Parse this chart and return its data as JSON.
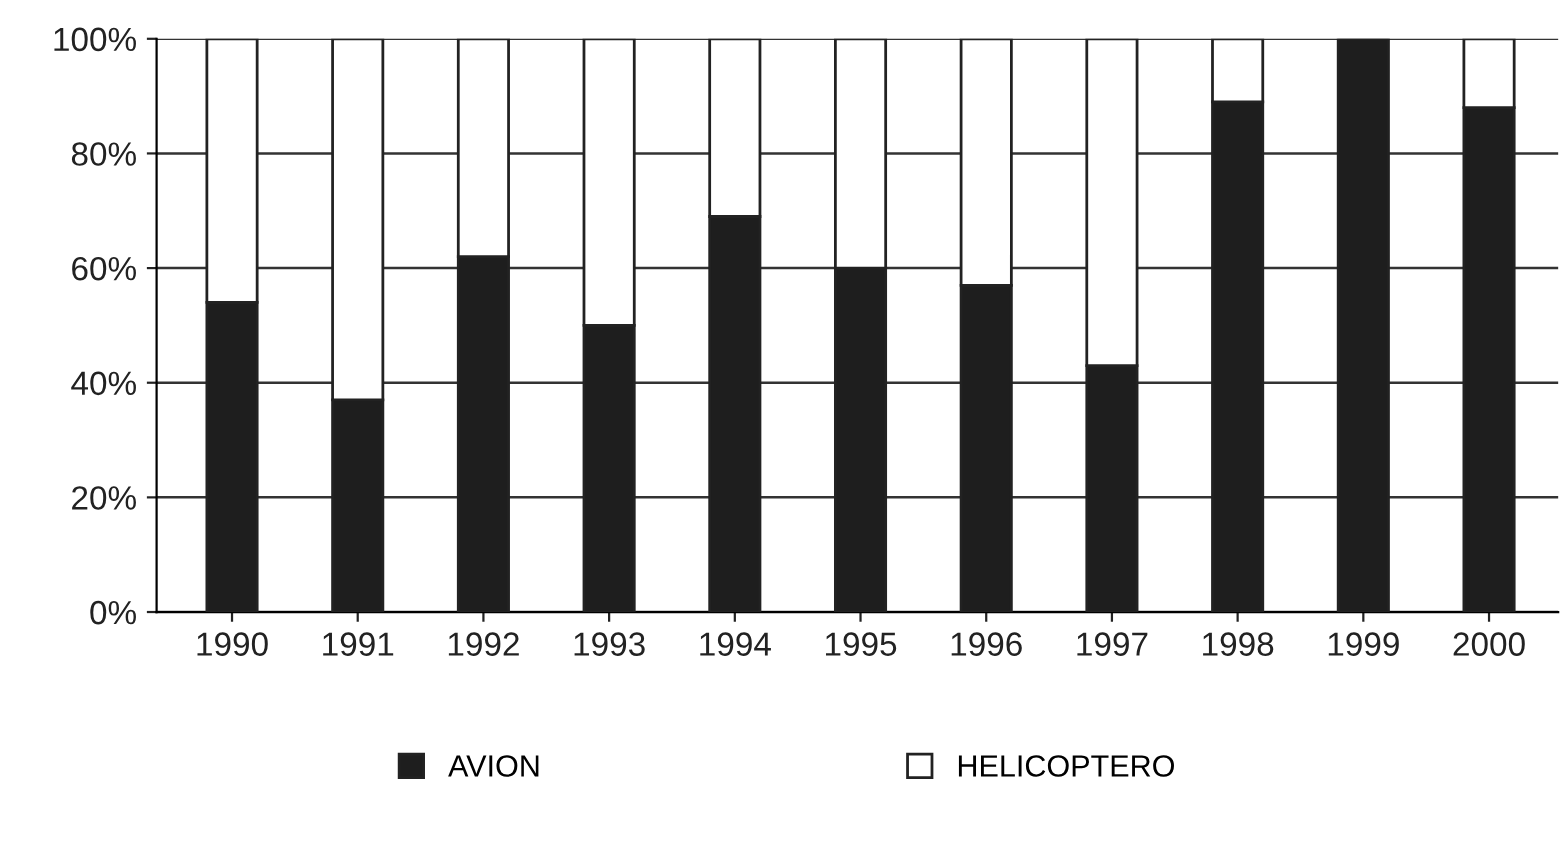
{
  "chart_data": {
    "type": "bar",
    "stacked": true,
    "categories": [
      "1990",
      "1991",
      "1992",
      "1993",
      "1994",
      "1995",
      "1996",
      "1997",
      "1998",
      "1999",
      "2000"
    ],
    "series": [
      {
        "name": "AVION",
        "color": "#1e1e1e",
        "values": [
          54,
          37,
          62,
          50,
          69,
          60,
          57,
          43,
          89,
          100,
          88
        ]
      },
      {
        "name": "HELICOPTERO",
        "color": "#ffffff",
        "values": [
          46,
          63,
          38,
          50,
          31,
          40,
          43,
          57,
          11,
          null,
          12
        ]
      }
    ],
    "ylim": [
      0,
      100
    ],
    "yticks": [
      {
        "value": 0,
        "label": "0%"
      },
      {
        "value": 20,
        "label": "20%"
      },
      {
        "value": 40,
        "label": "40%"
      },
      {
        "value": 60,
        "label": "60%"
      },
      {
        "value": 80,
        "label": "80%"
      },
      {
        "value": 100,
        "label": "100%"
      }
    ],
    "grid": "y",
    "legend": "bottom"
  }
}
